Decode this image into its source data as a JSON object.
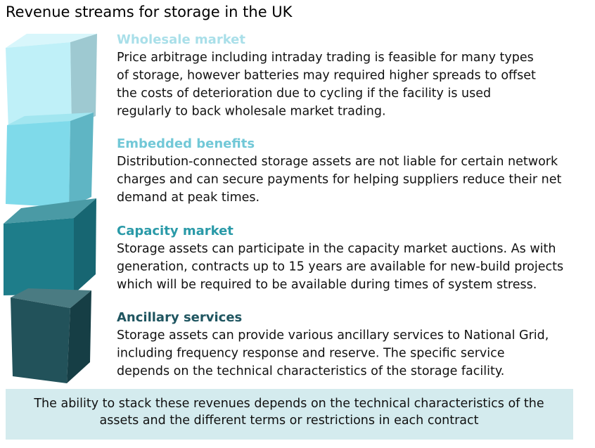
{
  "header": {
    "title": "Revenue streams for storage in the UK"
  },
  "items": [
    {
      "heading": "Wholesale market",
      "color": "#a9dfe9",
      "lines": [
        "Price arbitrage including intraday trading is feasible for many types",
        "of storage, however batteries may required higher spreads to offset",
        "the costs of deterioration due to cycling if the facility is used",
        "regularly to back wholesale market trading."
      ]
    },
    {
      "heading": "Embedded benefits",
      "color": "#72c8d7",
      "lines": [
        "Distribution-connected storage assets are not liable for certain network",
        "charges and can secure payments for helping suppliers reduce their net",
        "demand at peak times."
      ]
    },
    {
      "heading": "Capacity market",
      "color": "#2a9aa8",
      "lines": [
        "Storage assets can participate in the capacity market auctions. As with",
        "generation, contracts up to 15 years are available for new-build projects",
        "which will be required to be available during times of system stress."
      ]
    },
    {
      "heading": "Ancillary services",
      "color": "#1f5560",
      "lines": [
        "Storage assets can provide various ancillary services to National Grid,",
        "including frequency response and reserve. The specific service",
        "depends on the technical characteristics of the storage facility."
      ]
    }
  ],
  "footer": {
    "lines": [
      "The ability to stack these revenues depends on the technical characteristics of the",
      "assets and the different terms or restrictions in each contract"
    ]
  }
}
